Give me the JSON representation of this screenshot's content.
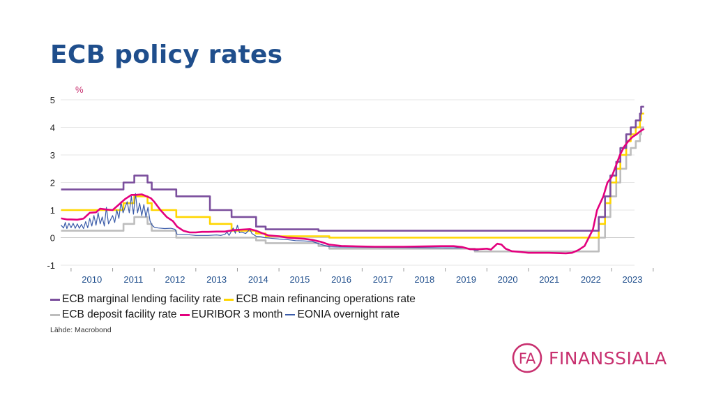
{
  "page": {
    "title": "ECB policy rates",
    "source": "Lähde: Macrobond"
  },
  "brand": {
    "logo_text": "FINANSSIALA",
    "logo_mark": "FA",
    "logo_color": "#c8306f"
  },
  "chart_data": {
    "type": "line",
    "title": "ECB policy rates",
    "ylabel": "%",
    "xlabel": "",
    "ylim": [
      -1,
      5
    ],
    "xlim": [
      2009.75,
      2023.55
    ],
    "yticks": [
      -1,
      0,
      1,
      2,
      3,
      4,
      5
    ],
    "xticks": [
      "2010",
      "2011",
      "2012",
      "2013",
      "2014",
      "2015",
      "2016",
      "2017",
      "2018",
      "2019",
      "2020",
      "2021",
      "2022",
      "2023"
    ],
    "grid": "horizontal",
    "legend": "bottom",
    "series": [
      {
        "name": "ECB marginal lending facility rate",
        "color": "#7b4f9d",
        "width": 2.6,
        "step": true,
        "points": [
          [
            2009.76,
            1.75
          ],
          [
            2011.26,
            2.0
          ],
          [
            2011.52,
            2.25
          ],
          [
            2011.84,
            2.0
          ],
          [
            2011.94,
            1.75
          ],
          [
            2012.53,
            1.5
          ],
          [
            2013.34,
            1.0
          ],
          [
            2013.86,
            0.75
          ],
          [
            2014.45,
            0.4
          ],
          [
            2014.68,
            0.3
          ],
          [
            2015.95,
            0.25
          ],
          [
            2016.21,
            0.25
          ],
          [
            2022.57,
            0.25
          ],
          [
            2022.69,
            0.75
          ],
          [
            2022.84,
            1.5
          ],
          [
            2022.97,
            2.25
          ],
          [
            2023.11,
            2.75
          ],
          [
            2023.21,
            3.25
          ],
          [
            2023.35,
            3.75
          ],
          [
            2023.46,
            4.0
          ],
          [
            2023.58,
            4.25
          ],
          [
            2023.68,
            4.5
          ],
          [
            2023.71,
            4.75
          ],
          [
            2023.78,
            4.75
          ]
        ]
      },
      {
        "name": "ECB main refinancing operations rate",
        "color": "#ffd600",
        "width": 2.6,
        "step": true,
        "points": [
          [
            2009.76,
            1.0
          ],
          [
            2011.26,
            1.25
          ],
          [
            2011.52,
            1.5
          ],
          [
            2011.84,
            1.25
          ],
          [
            2011.94,
            1.0
          ],
          [
            2012.53,
            0.75
          ],
          [
            2013.34,
            0.5
          ],
          [
            2013.86,
            0.25
          ],
          [
            2014.45,
            0.15
          ],
          [
            2014.68,
            0.05
          ],
          [
            2016.21,
            0.0
          ],
          [
            2022.57,
            0.0
          ],
          [
            2022.69,
            0.5
          ],
          [
            2022.84,
            1.25
          ],
          [
            2022.97,
            2.0
          ],
          [
            2023.11,
            2.5
          ],
          [
            2023.21,
            3.0
          ],
          [
            2023.35,
            3.5
          ],
          [
            2023.46,
            3.75
          ],
          [
            2023.58,
            4.0
          ],
          [
            2023.68,
            4.25
          ],
          [
            2023.71,
            4.5
          ],
          [
            2023.78,
            4.5
          ]
        ]
      },
      {
        "name": "ECB deposit facility rate",
        "color": "#bdbdbd",
        "width": 2.6,
        "step": true,
        "points": [
          [
            2009.76,
            0.25
          ],
          [
            2011.26,
            0.5
          ],
          [
            2011.52,
            0.75
          ],
          [
            2011.84,
            0.5
          ],
          [
            2011.94,
            0.25
          ],
          [
            2012.53,
            0.0
          ],
          [
            2014.45,
            -0.1
          ],
          [
            2014.68,
            -0.2
          ],
          [
            2015.95,
            -0.3
          ],
          [
            2016.21,
            -0.4
          ],
          [
            2019.71,
            -0.5
          ],
          [
            2022.57,
            -0.5
          ],
          [
            2022.69,
            0.0
          ],
          [
            2022.84,
            0.75
          ],
          [
            2022.97,
            1.5
          ],
          [
            2023.11,
            2.0
          ],
          [
            2023.21,
            2.5
          ],
          [
            2023.35,
            3.0
          ],
          [
            2023.46,
            3.25
          ],
          [
            2023.58,
            3.5
          ],
          [
            2023.68,
            3.75
          ],
          [
            2023.71,
            4.0
          ],
          [
            2023.78,
            4.0
          ]
        ]
      },
      {
        "name": "EURIBOR 3 month",
        "color": "#e3007e",
        "width": 2.6,
        "step": false,
        "points": [
          [
            2009.76,
            0.7
          ],
          [
            2009.9,
            0.66
          ],
          [
            2010.0,
            0.66
          ],
          [
            2010.15,
            0.65
          ],
          [
            2010.3,
            0.69
          ],
          [
            2010.45,
            0.9
          ],
          [
            2010.6,
            0.92
          ],
          [
            2010.7,
            1.05
          ],
          [
            2010.85,
            1.02
          ],
          [
            2011.0,
            1.0
          ],
          [
            2011.15,
            1.2
          ],
          [
            2011.3,
            1.4
          ],
          [
            2011.45,
            1.55
          ],
          [
            2011.55,
            1.55
          ],
          [
            2011.7,
            1.57
          ],
          [
            2011.82,
            1.5
          ],
          [
            2011.92,
            1.43
          ],
          [
            2012.0,
            1.3
          ],
          [
            2012.15,
            1.0
          ],
          [
            2012.3,
            0.75
          ],
          [
            2012.45,
            0.6
          ],
          [
            2012.55,
            0.4
          ],
          [
            2012.7,
            0.25
          ],
          [
            2012.85,
            0.19
          ],
          [
            2013.0,
            0.19
          ],
          [
            2013.15,
            0.21
          ],
          [
            2013.3,
            0.21
          ],
          [
            2013.5,
            0.22
          ],
          [
            2013.7,
            0.22
          ],
          [
            2013.9,
            0.27
          ],
          [
            2014.1,
            0.29
          ],
          [
            2014.3,
            0.31
          ],
          [
            2014.45,
            0.25
          ],
          [
            2014.6,
            0.16
          ],
          [
            2014.75,
            0.08
          ],
          [
            2015.0,
            0.05
          ],
          [
            2015.2,
            0.0
          ],
          [
            2015.4,
            -0.02
          ],
          [
            2015.6,
            -0.04
          ],
          [
            2015.8,
            -0.08
          ],
          [
            2016.0,
            -0.15
          ],
          [
            2016.2,
            -0.25
          ],
          [
            2016.5,
            -0.3
          ],
          [
            2016.9,
            -0.32
          ],
          [
            2017.3,
            -0.33
          ],
          [
            2017.7,
            -0.33
          ],
          [
            2018.0,
            -0.33
          ],
          [
            2018.5,
            -0.32
          ],
          [
            2018.9,
            -0.31
          ],
          [
            2019.2,
            -0.31
          ],
          [
            2019.4,
            -0.34
          ],
          [
            2019.6,
            -0.42
          ],
          [
            2019.8,
            -0.42
          ],
          [
            2020.0,
            -0.4
          ],
          [
            2020.1,
            -0.43
          ],
          [
            2020.25,
            -0.22
          ],
          [
            2020.35,
            -0.25
          ],
          [
            2020.45,
            -0.4
          ],
          [
            2020.6,
            -0.49
          ],
          [
            2020.8,
            -0.52
          ],
          [
            2021.0,
            -0.55
          ],
          [
            2021.5,
            -0.55
          ],
          [
            2021.9,
            -0.57
          ],
          [
            2022.05,
            -0.55
          ],
          [
            2022.2,
            -0.45
          ],
          [
            2022.35,
            -0.3
          ],
          [
            2022.45,
            0.0
          ],
          [
            2022.55,
            0.3
          ],
          [
            2022.65,
            1.0
          ],
          [
            2022.8,
            1.5
          ],
          [
            2022.9,
            2.0
          ],
          [
            2023.0,
            2.2
          ],
          [
            2023.1,
            2.6
          ],
          [
            2023.2,
            3.0
          ],
          [
            2023.3,
            3.3
          ],
          [
            2023.4,
            3.5
          ],
          [
            2023.5,
            3.65
          ],
          [
            2023.6,
            3.75
          ],
          [
            2023.68,
            3.85
          ],
          [
            2023.78,
            3.95
          ]
        ]
      },
      {
        "name": "EONIA overnight rate",
        "color": "#3a5ba9",
        "width": 1.2,
        "step": false,
        "points": [
          [
            2009.76,
            0.45
          ],
          [
            2009.82,
            0.35
          ],
          [
            2009.86,
            0.55
          ],
          [
            2009.9,
            0.33
          ],
          [
            2009.95,
            0.52
          ],
          [
            2010.0,
            0.36
          ],
          [
            2010.05,
            0.52
          ],
          [
            2010.1,
            0.34
          ],
          [
            2010.15,
            0.5
          ],
          [
            2010.2,
            0.34
          ],
          [
            2010.25,
            0.48
          ],
          [
            2010.3,
            0.33
          ],
          [
            2010.35,
            0.58
          ],
          [
            2010.4,
            0.36
          ],
          [
            2010.45,
            0.7
          ],
          [
            2010.5,
            0.42
          ],
          [
            2010.55,
            0.8
          ],
          [
            2010.6,
            0.45
          ],
          [
            2010.65,
            0.9
          ],
          [
            2010.7,
            0.5
          ],
          [
            2010.75,
            0.75
          ],
          [
            2010.8,
            0.42
          ],
          [
            2010.85,
            1.1
          ],
          [
            2010.9,
            0.5
          ],
          [
            2010.95,
            0.65
          ],
          [
            2011.0,
            0.8
          ],
          [
            2011.05,
            0.55
          ],
          [
            2011.1,
            1.0
          ],
          [
            2011.15,
            0.7
          ],
          [
            2011.2,
            1.3
          ],
          [
            2011.25,
            0.9
          ],
          [
            2011.3,
            1.1
          ],
          [
            2011.35,
            1.3
          ],
          [
            2011.4,
            0.9
          ],
          [
            2011.45,
            1.5
          ],
          [
            2011.5,
            0.85
          ],
          [
            2011.55,
            1.6
          ],
          [
            2011.6,
            0.9
          ],
          [
            2011.65,
            1.25
          ],
          [
            2011.7,
            0.8
          ],
          [
            2011.75,
            1.2
          ],
          [
            2011.8,
            0.75
          ],
          [
            2011.85,
            1.1
          ],
          [
            2011.9,
            0.6
          ],
          [
            2011.95,
            0.45
          ],
          [
            2012.0,
            0.38
          ],
          [
            2012.1,
            0.35
          ],
          [
            2012.25,
            0.33
          ],
          [
            2012.4,
            0.34
          ],
          [
            2012.5,
            0.3
          ],
          [
            2012.55,
            0.12
          ],
          [
            2012.8,
            0.11
          ],
          [
            2013.0,
            0.08
          ],
          [
            2013.3,
            0.08
          ],
          [
            2013.5,
            0.1
          ],
          [
            2013.6,
            0.08
          ],
          [
            2013.7,
            0.12
          ],
          [
            2013.75,
            0.2
          ],
          [
            2013.8,
            0.08
          ],
          [
            2013.9,
            0.35
          ],
          [
            2013.95,
            0.16
          ],
          [
            2014.0,
            0.45
          ],
          [
            2014.05,
            0.18
          ],
          [
            2014.1,
            0.2
          ],
          [
            2014.2,
            0.15
          ],
          [
            2014.3,
            0.3
          ],
          [
            2014.35,
            0.15
          ],
          [
            2014.45,
            0.05
          ],
          [
            2014.55,
            0.04
          ],
          [
            2014.65,
            0.0
          ],
          [
            2014.8,
            -0.02
          ],
          [
            2015.0,
            -0.05
          ],
          [
            2015.2,
            -0.07
          ],
          [
            2015.4,
            -0.11
          ],
          [
            2015.6,
            -0.12
          ],
          [
            2015.8,
            -0.14
          ],
          [
            2016.0,
            -0.24
          ],
          [
            2016.2,
            -0.33
          ],
          [
            2016.4,
            -0.34
          ],
          [
            2017.0,
            -0.35
          ],
          [
            2018.0,
            -0.36
          ],
          [
            2019.0,
            -0.37
          ],
          [
            2019.5,
            -0.37
          ],
          [
            2019.71,
            -0.46
          ],
          [
            2019.8,
            -0.46
          ]
        ]
      }
    ]
  }
}
